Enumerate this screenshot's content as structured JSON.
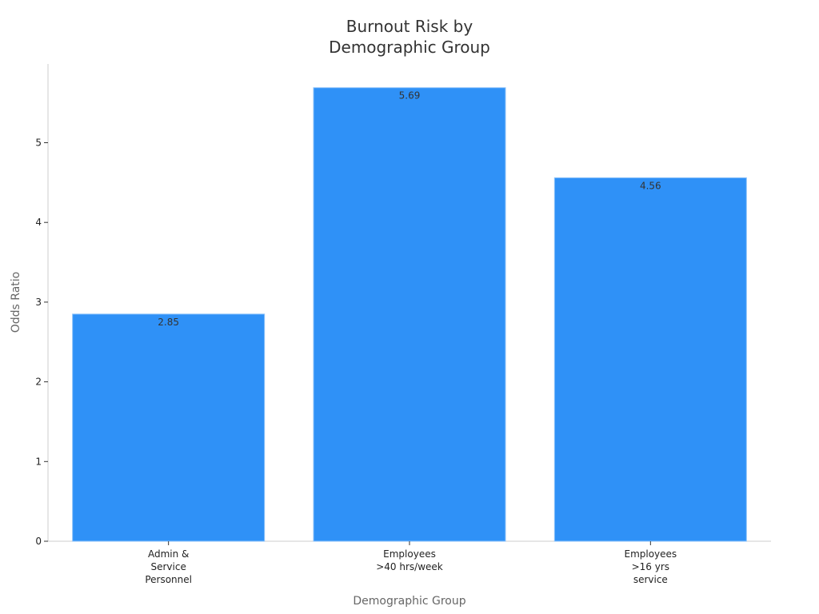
{
  "chart_data": {
    "type": "bar",
    "title_lines": [
      "Burnout Risk by",
      "Demographic Group"
    ],
    "xlabel": "Demographic Group",
    "ylabel": "Odds Ratio",
    "categories": [
      [
        "Admin &",
        "Service",
        "Personnel"
      ],
      [
        "Employees",
        ">40 hrs/week"
      ],
      [
        "Employees",
        ">16 yrs",
        "service"
      ]
    ],
    "values": [
      2.85,
      5.69,
      4.56
    ],
    "data_labels": [
      "2.85",
      "5.69",
      "4.56"
    ],
    "ylim": [
      0,
      6
    ],
    "yticks": [
      0,
      1,
      2,
      3,
      4,
      5
    ],
    "grid": false,
    "bar_color": "#2f91f7"
  }
}
